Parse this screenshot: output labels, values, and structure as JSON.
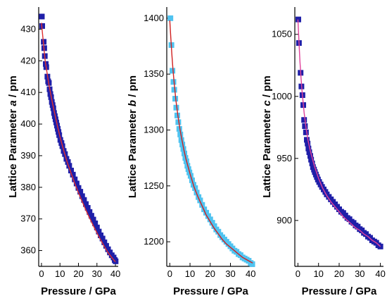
{
  "chart_data": [
    {
      "type": "scatter",
      "xlabel": "Pressure / GPa",
      "ylabel": [
        "Lattice Parameter ",
        "a",
        " / pm"
      ],
      "xlim": [
        -1.5,
        41.5
      ],
      "ylim": [
        355,
        437
      ],
      "xticks": [
        0,
        10,
        20,
        30,
        40
      ],
      "xtick_labels": [
        "0",
        "10",
        "20",
        "30",
        "40"
      ],
      "yticks": [
        360,
        370,
        380,
        390,
        400,
        410,
        420,
        430
      ],
      "ytick_labels": [
        "360",
        "370",
        "380",
        "390",
        "400",
        "410",
        "420",
        "430"
      ],
      "grid": false,
      "marker_color": "#1f1fa8",
      "fit_color": "#e03030",
      "series": [
        {
          "x": [
            0.2,
            0.4,
            1.2,
            1.5,
            1.8,
            2.3,
            2.6,
            3.2,
            3.6,
            4.0,
            4.4,
            4.8,
            5.2,
            5.6,
            6.0,
            6.4,
            6.8,
            7.2,
            7.6,
            8.0,
            8.4,
            8.8,
            9.2,
            9.6,
            10.2,
            10.8,
            11.3,
            12.0,
            12.7,
            13.5,
            14.3,
            15.0,
            16.0,
            17.0,
            18.0,
            19.0,
            20.0,
            21.0,
            22.0,
            23.0,
            24.0,
            25.0,
            26.0,
            27.0,
            28.0,
            29.0,
            30.0,
            31.0,
            32.0,
            33.0,
            34.0,
            35.0,
            36.0,
            37.0,
            38.0,
            39.0,
            39.6,
            40.1
          ],
          "y": [
            434.0,
            431.0,
            426.0,
            424.0,
            421.5,
            419.0,
            418.0,
            415.0,
            413.5,
            413.0,
            411.0,
            409.5,
            408.5,
            407.0,
            406.0,
            405.0,
            403.5,
            402.5,
            401.5,
            400.5,
            399.5,
            398.5,
            397.5,
            396.5,
            395.0,
            394.0,
            393.0,
            391.5,
            390.5,
            389.0,
            388.0,
            386.8,
            385.3,
            384.0,
            382.5,
            381.2,
            379.8,
            378.6,
            377.2,
            376.0,
            374.7,
            373.5,
            372.2,
            371.0,
            369.8,
            368.6,
            367.3,
            366.0,
            364.8,
            363.8,
            362.6,
            361.5,
            360.4,
            359.4,
            358.5,
            357.8,
            357.0,
            356.6
          ]
        }
      ],
      "fit": {
        "x": [
          0,
          2,
          4,
          6,
          8,
          10,
          12,
          14,
          16,
          18,
          20,
          22,
          24,
          26,
          28,
          30,
          32,
          34,
          36,
          38,
          40
        ],
        "y": [
          432.0,
          420.0,
          412.5,
          406.5,
          401.0,
          396.0,
          391.7,
          387.8,
          384.5,
          381.3,
          378.3,
          375.5,
          372.8,
          370.3,
          367.9,
          365.6,
          363.4,
          361.3,
          359.4,
          357.8,
          356.4
        ]
      }
    },
    {
      "type": "scatter",
      "xlabel": "Pressure / GPa",
      "ylabel": [
        "Lattice Parameter ",
        "b",
        " / pm"
      ],
      "xlim": [
        -1.5,
        42
      ],
      "ylim": [
        1178,
        1410
      ],
      "xticks": [
        0,
        10,
        20,
        30,
        40
      ],
      "xtick_labels": [
        "0",
        "10",
        "20",
        "30",
        "40"
      ],
      "yticks": [
        1200,
        1250,
        1300,
        1350,
        1400
      ],
      "ytick_labels": [
        "1200",
        "1250",
        "1300",
        "1350",
        "1400"
      ],
      "grid": false,
      "marker_color": "#4fc3f0",
      "fit_color": "#d02020",
      "series": [
        {
          "x": [
            0.3,
            0.8,
            1.3,
            1.8,
            2.2,
            2.7,
            3.2,
            3.7,
            4.2,
            4.7,
            5.2,
            5.7,
            6.2,
            6.7,
            7.2,
            7.7,
            8.2,
            8.7,
            9.2,
            9.7,
            10.3,
            11.0,
            11.7,
            12.5,
            13.3,
            14.2,
            15.0,
            16.0,
            17.0,
            18.0,
            19.0,
            20.0,
            21.0,
            22.0,
            23.0,
            24.0,
            25.0,
            26.0,
            27.0,
            28.0,
            29.0,
            30.0,
            31.0,
            32.0,
            33.0,
            34.0,
            35.0,
            36.0,
            37.0,
            38.0,
            39.0,
            40.0,
            40.8
          ],
          "y": [
            1400,
            1376,
            1353,
            1343,
            1336,
            1328,
            1320,
            1313,
            1307,
            1301,
            1296,
            1291,
            1287,
            1283,
            1279,
            1275,
            1272,
            1268,
            1265,
            1262,
            1259,
            1255,
            1251,
            1248,
            1244,
            1240,
            1237,
            1233,
            1229,
            1226,
            1223,
            1220,
            1217,
            1214,
            1211,
            1209,
            1206,
            1204,
            1202,
            1200,
            1198,
            1196,
            1194,
            1192,
            1191,
            1189,
            1188,
            1186,
            1185,
            1184,
            1183,
            1181,
            1180
          ]
        }
      ],
      "fit": {
        "x": [
          0,
          0.5,
          1,
          1.5,
          2,
          3,
          4,
          5,
          6,
          7,
          8,
          10,
          12,
          14,
          16,
          18,
          20,
          22,
          24,
          26,
          28,
          30,
          32,
          34,
          36,
          38,
          40,
          41
        ],
        "y": [
          1398,
          1383,
          1368,
          1356,
          1345,
          1327,
          1313,
          1301,
          1291,
          1282,
          1274,
          1261,
          1249,
          1240,
          1232,
          1224,
          1218,
          1212,
          1207,
          1202,
          1198,
          1195,
          1192,
          1189,
          1186,
          1184,
          1182,
          1181
        ]
      }
    },
    {
      "type": "scatter",
      "xlabel": "Pressure / GPa",
      "ylabel": [
        "Lattice Parameter ",
        "c",
        " /  pm"
      ],
      "xlim": [
        -1.5,
        41.5
      ],
      "ylim": [
        863,
        1072
      ],
      "xticks": [
        0,
        10,
        20,
        30,
        40
      ],
      "xtick_labels": [
        "0",
        "10",
        "20",
        "30",
        "40"
      ],
      "yticks": [
        900,
        950,
        1000,
        1050
      ],
      "ytick_labels": [
        "900",
        "950",
        "1000",
        "1050"
      ],
      "grid": false,
      "marker_color": "#1f1fa8",
      "fit_color": "#e0409a",
      "series": [
        {
          "x": [
            0.2,
            0.5,
            1.3,
            1.7,
            2.2,
            2.6,
            3.0,
            3.4,
            3.9,
            4.3,
            4.7,
            5.1,
            5.5,
            6.0,
            6.4,
            6.9,
            7.3,
            7.8,
            8.2,
            8.7,
            9.2,
            9.7,
            10.3,
            11.0,
            11.7,
            12.5,
            13.3,
            14.0,
            15.0,
            16.0,
            17.0,
            18.0,
            19.0,
            20.0,
            21.0,
            22.0,
            23.0,
            24.0,
            25.0,
            26.0,
            27.0,
            28.0,
            29.0,
            30.0,
            31.0,
            32.0,
            33.0,
            34.0,
            35.0,
            36.0,
            37.0,
            38.0,
            39.0,
            40.0
          ],
          "y": [
            1062,
            1043,
            1019,
            1008,
            1001,
            993,
            981,
            976,
            971,
            965,
            962,
            958,
            955,
            952,
            949,
            946,
            943,
            941,
            939,
            937,
            935,
            933,
            931,
            929,
            927,
            925,
            923,
            921,
            919,
            917,
            915,
            913,
            911,
            909,
            907,
            906,
            904,
            902,
            901,
            899,
            898,
            896,
            895,
            893,
            892,
            890,
            889,
            887,
            886,
            884,
            883,
            882,
            880,
            879
          ]
        }
      ],
      "fit": {
        "x": [
          0,
          0.5,
          1,
          1.5,
          2,
          3,
          4,
          5,
          6,
          8,
          10,
          12,
          14,
          16,
          18,
          20,
          22,
          24,
          26,
          28,
          30,
          32,
          34,
          36,
          38,
          40
        ],
        "y": [
          1062,
          1044,
          1028,
          1015,
          1004,
          987,
          974,
          964,
          956,
          944,
          934,
          926,
          920,
          915,
          911,
          907,
          903,
          900,
          897,
          894,
          892,
          889,
          887,
          884,
          882,
          879
        ]
      }
    }
  ]
}
